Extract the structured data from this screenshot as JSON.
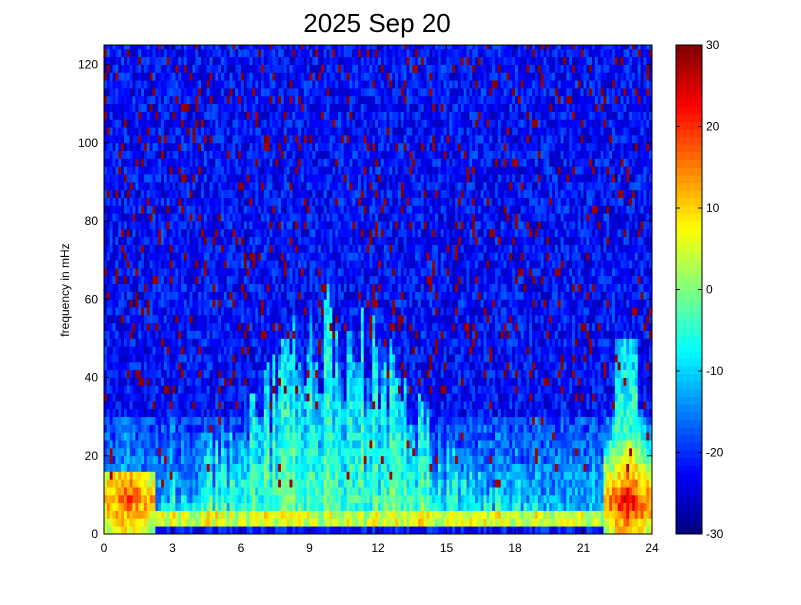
{
  "chart_data": {
    "type": "heatmap",
    "title": "2025 Sep 20",
    "xlabel": "",
    "ylabel": "frequency in mHz",
    "xlim": [
      0,
      24
    ],
    "ylim": [
      0,
      125
    ],
    "x_ticks": [
      "0",
      "3",
      "6",
      "9",
      "12",
      "15",
      "18",
      "21",
      "24"
    ],
    "x_tick_values": [
      0,
      3,
      6,
      9,
      12,
      15,
      18,
      21,
      24
    ],
    "y_ticks": [
      "0",
      "20",
      "40",
      "60",
      "80",
      "100",
      "120"
    ],
    "y_tick_values": [
      0,
      20,
      40,
      60,
      80,
      100,
      120
    ],
    "colorbar": {
      "range": [
        -30,
        30
      ],
      "ticks": [
        "-30",
        "-20",
        "-10",
        "0",
        "10",
        "20",
        "30"
      ],
      "tick_values": [
        -30,
        -20,
        -10,
        0,
        10,
        20,
        30
      ],
      "colormap": "jet"
    },
    "time_step_hours": 0.125,
    "freq_step_mhz": 2,
    "features": [
      {
        "description": "strong low-frequency power band",
        "x_range": [
          0,
          24
        ],
        "y_range": [
          0,
          6
        ],
        "level": 5
      },
      {
        "description": "intense enhancement",
        "x_range": [
          0,
          2
        ],
        "y_range": [
          2,
          16
        ],
        "level": 22
      },
      {
        "description": "broad mid-frequency enhancement",
        "x_range": [
          3,
          16
        ],
        "y_range": [
          6,
          50
        ],
        "level": 0
      },
      {
        "description": "intense enhancement",
        "x_range": [
          22,
          24
        ],
        "y_range": [
          2,
          16
        ],
        "level": 24
      },
      {
        "description": "background noise",
        "x_range": [
          0,
          24
        ],
        "y_range": [
          60,
          125
        ],
        "level": -22
      }
    ]
  }
}
